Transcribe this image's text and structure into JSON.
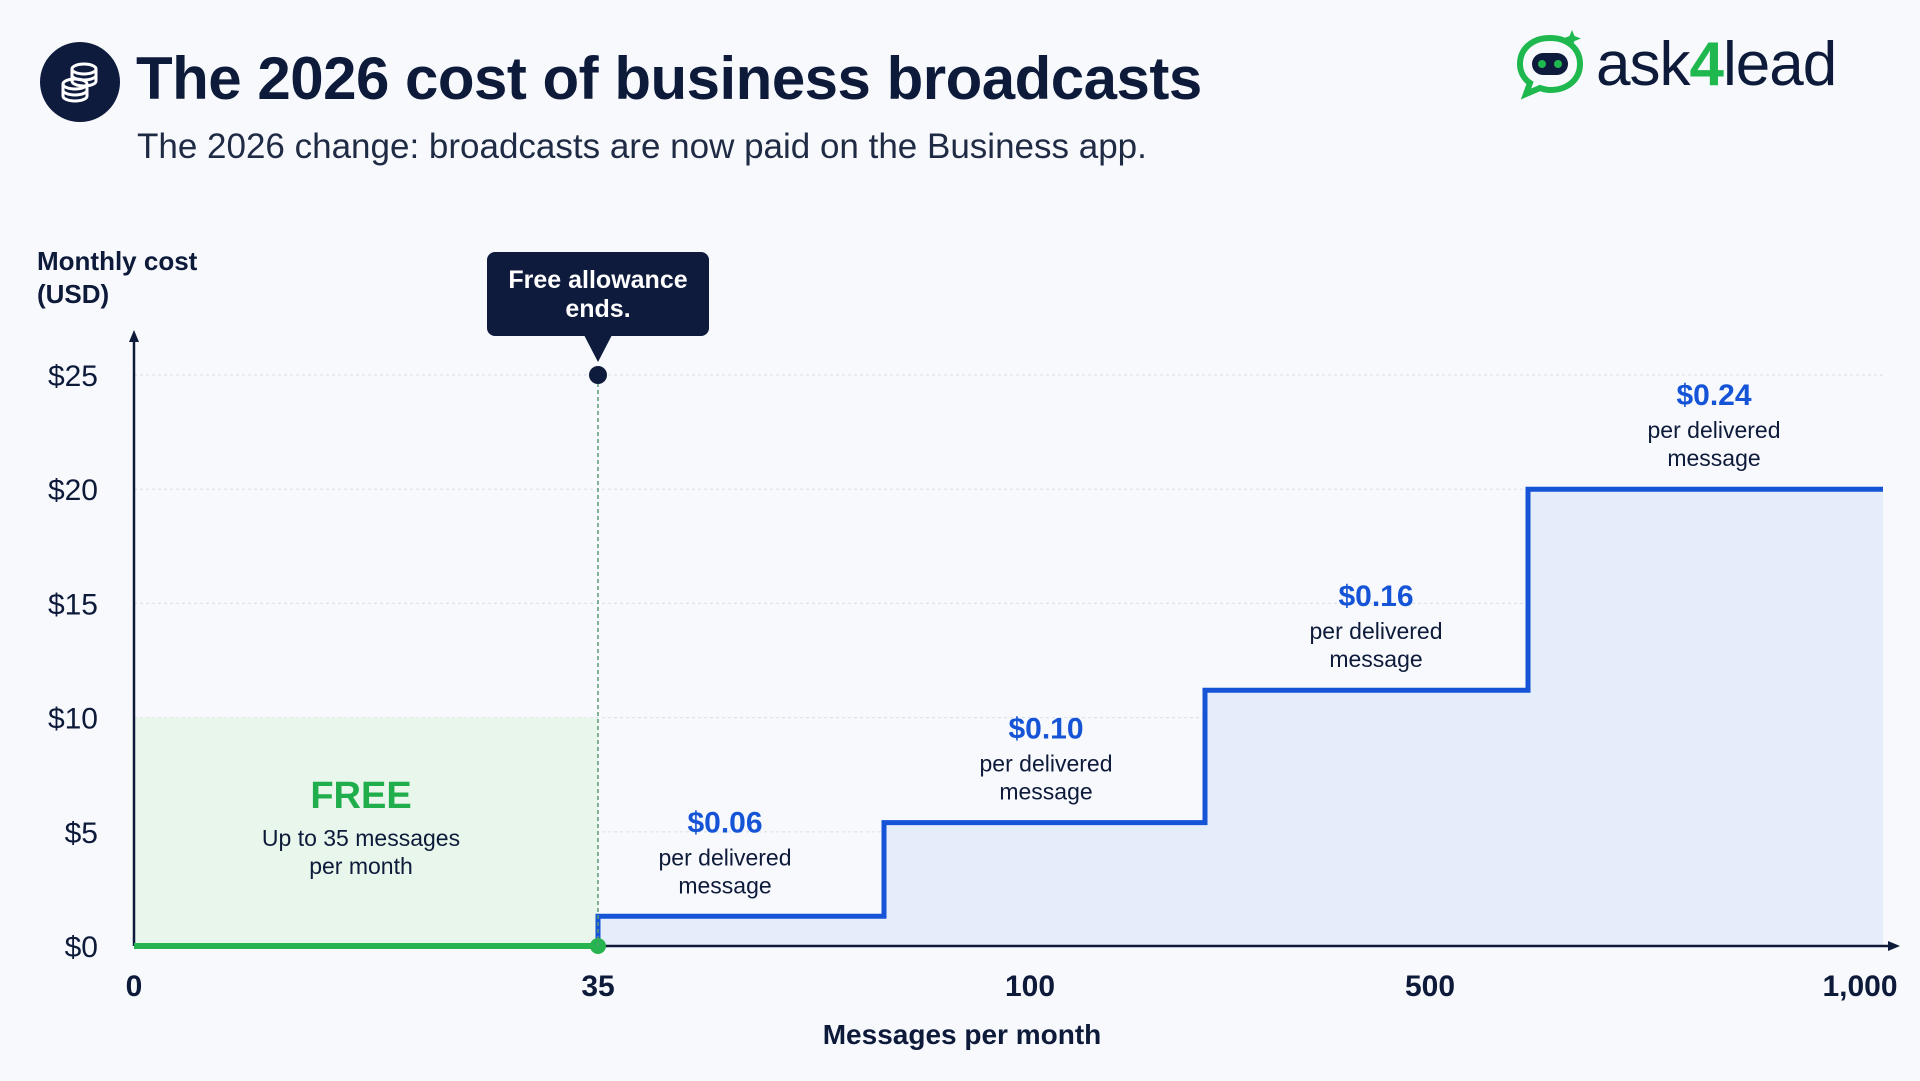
{
  "header": {
    "title": "The 2026 cost of business broadcasts",
    "subtitle": "The 2026 change: broadcasts are now paid on the Business app.",
    "icon": "coins-stack-icon"
  },
  "logo": {
    "text_prefix": "ask",
    "text_digit": "4",
    "text_suffix": "lead",
    "icon": "chat-robot-icon"
  },
  "colors": {
    "step_line": "#1554d6",
    "free_line": "#27b34f",
    "free_fill": "#e8f6ec",
    "paid_fill": "#e6edfa",
    "free_label": "#1fae4b",
    "price_label": "#1554d6",
    "callout_bg": "#0f1b3d"
  },
  "chart_data": {
    "type": "line",
    "step": true,
    "ylabel": "Monthly cost (USD)",
    "ylabel_lines": [
      "Monthly cost",
      "(USD)"
    ],
    "xlabel": "Messages per month",
    "ylim": [
      0,
      25
    ],
    "y_ticks": [
      "$0",
      "$5",
      "$10",
      "$15",
      "$20",
      "$25"
    ],
    "y_tick_values": [
      0,
      5,
      10,
      15,
      20,
      25
    ],
    "x_ticks": [
      "0",
      "35",
      "100",
      "500",
      "1,000"
    ],
    "x_tick_values": [
      0,
      35,
      100,
      500,
      1000
    ],
    "grid": true,
    "steps": [
      {
        "from": "0",
        "to": "35",
        "cost": 0,
        "label": "FREE",
        "sublabel_lines": [
          "Up to 35 messages",
          "per month"
        ]
      },
      {
        "from": "35",
        "to": "100",
        "cost": 1.3,
        "price": "$0.06",
        "sublabel_lines": [
          "per delivered",
          "message"
        ]
      },
      {
        "from": "100",
        "to": "500",
        "cost": 5.4,
        "price": "$0.10",
        "sublabel_lines": [
          "per delivered",
          "message"
        ]
      },
      {
        "from": "500",
        "to": "1,000",
        "cost": 11.2,
        "price": "$0.16",
        "sublabel_lines": [
          "per delivered",
          "message"
        ]
      },
      {
        "from": "1,000",
        "to": "1,000+",
        "cost": 20,
        "price": "$0.24",
        "sublabel_lines": [
          "per delivered",
          "message"
        ]
      }
    ],
    "annotation": {
      "text_lines": [
        "Free allowance",
        "ends."
      ],
      "x": 35
    }
  }
}
